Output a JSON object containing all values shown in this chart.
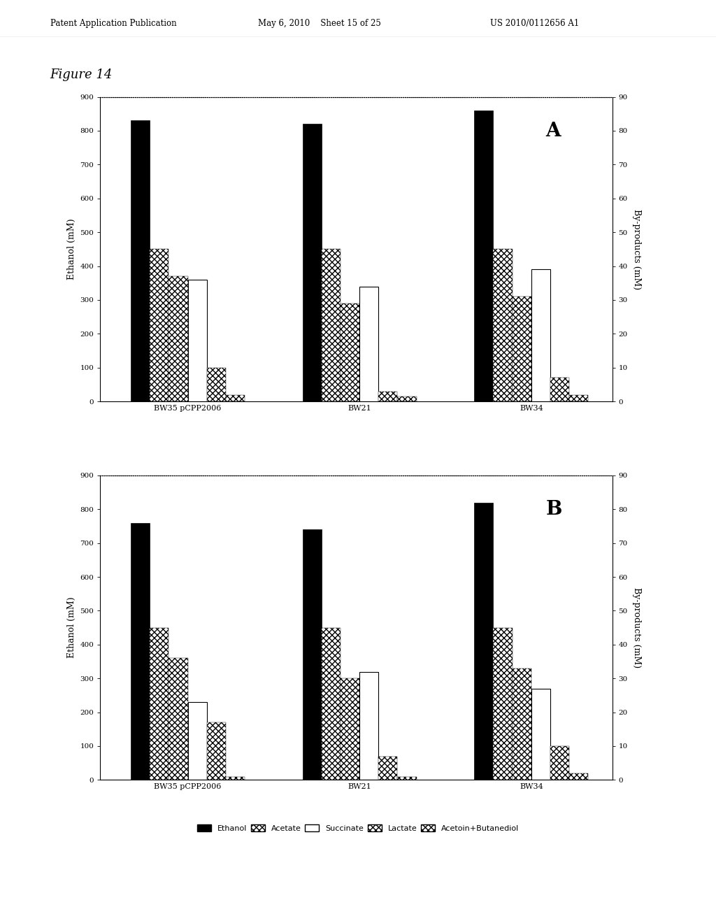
{
  "figure_title": "Figure 14",
  "header_left": "Patent Application Publication",
  "header_center": "May 6, 2010    Sheet 15 of 25",
  "header_right": "US 2010/0112656 A1",
  "groups": [
    "BW35 pCPP2006",
    "BW21",
    "BW34"
  ],
  "chartA": {
    "label": "A",
    "ethanol": [
      830,
      820,
      860
    ],
    "acetate": [
      450,
      450,
      450
    ],
    "succinate_hatch": [
      370,
      290,
      310
    ],
    "succinate_white": [
      360,
      340,
      390
    ],
    "lactate": [
      100,
      30,
      70
    ],
    "acetoin": [
      20,
      15,
      20
    ]
  },
  "chartB": {
    "label": "B",
    "ethanol": [
      760,
      740,
      820
    ],
    "acetate": [
      450,
      450,
      450
    ],
    "succinate_hatch": [
      360,
      300,
      330
    ],
    "succinate_white": [
      230,
      320,
      270
    ],
    "lactate": [
      170,
      70,
      100
    ],
    "acetoin": [
      10,
      10,
      20
    ]
  },
  "ylim_left": [
    0,
    900
  ],
  "ylim_right": [
    0,
    90
  ],
  "yticks_left": [
    0,
    100,
    200,
    300,
    400,
    500,
    600,
    700,
    800,
    900
  ],
  "yticks_right": [
    0,
    10,
    20,
    30,
    40,
    50,
    60,
    70,
    80,
    90
  ],
  "ylabel_left": "Ethanol (mM)",
  "ylabel_right": "By-products (mM)",
  "legend_labels": [
    "Ethanol",
    "Acetate",
    "Succinate",
    "Lactate",
    "Acetoin+Butanediol"
  ],
  "group_centers": [
    0.38,
    1.42,
    2.46
  ],
  "bar_width": 0.115
}
